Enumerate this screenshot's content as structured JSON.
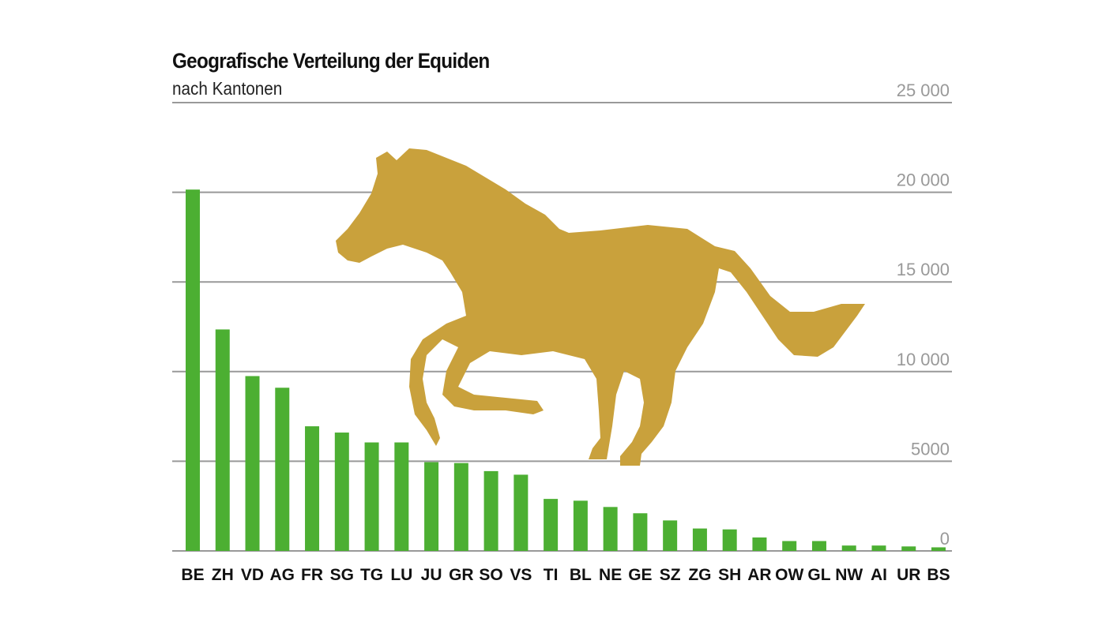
{
  "chart_data": {
    "type": "bar",
    "title": "Geografische Verteilung der Equiden",
    "subtitle": "nach Kantonen",
    "xlabel": "",
    "ylabel": "",
    "categories": [
      "BE",
      "ZH",
      "VD",
      "AG",
      "FR",
      "SG",
      "TG",
      "LU",
      "JU",
      "GR",
      "SO",
      "VS",
      "TI",
      "BL",
      "NE",
      "GE",
      "SZ",
      "ZG",
      "SH",
      "AR",
      "OW",
      "GL",
      "NW",
      "AI",
      "UR",
      "BS"
    ],
    "values": [
      20150,
      12350,
      9750,
      9100,
      6950,
      6600,
      6050,
      6050,
      4950,
      4900,
      4450,
      4250,
      2900,
      2800,
      2450,
      2100,
      1700,
      1250,
      1200,
      750,
      550,
      550,
      300,
      300,
      250,
      200
    ],
    "ylim": [
      0,
      25000
    ],
    "yticks": [
      0,
      5000,
      10000,
      15000,
      20000,
      25000
    ],
    "ytick_labels": [
      "0",
      "5000",
      "10 000",
      "15 000",
      "20 000",
      "25 000"
    ],
    "grid": true,
    "y_axis_position": "right",
    "bar_color": "#4caf32",
    "decoration": "horse-silhouette",
    "decoration_color": "#c9a13c"
  }
}
